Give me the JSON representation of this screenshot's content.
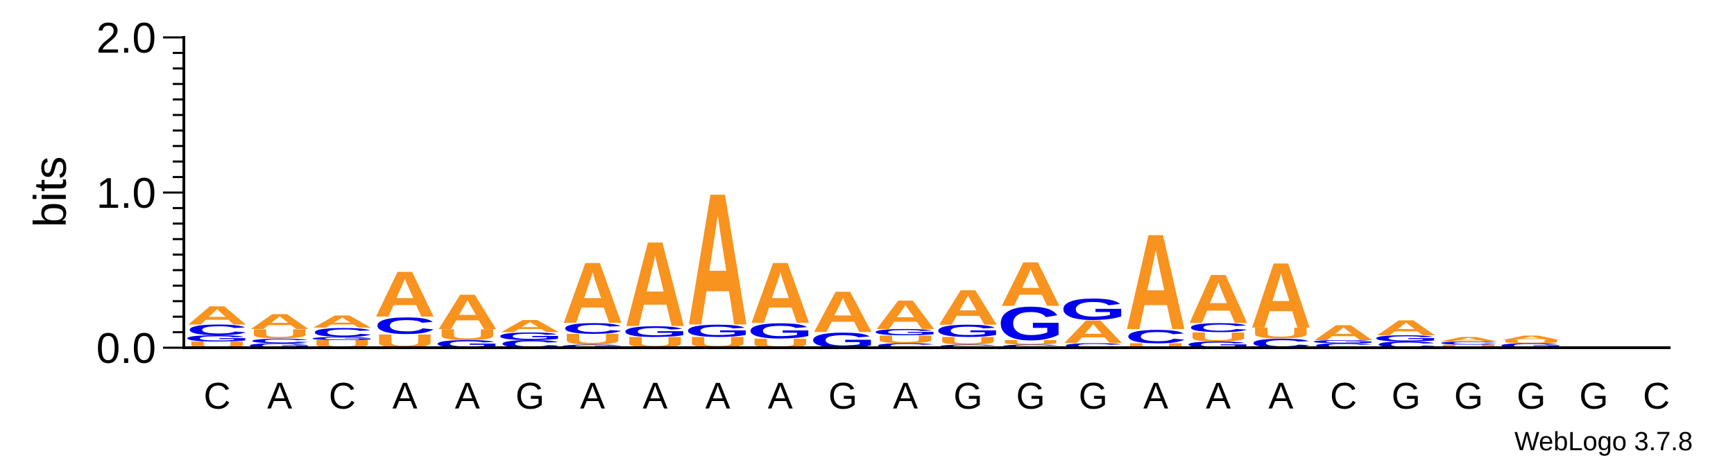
{
  "chart_data": {
    "type": "sequence-logo",
    "ylabel": "bits",
    "ylim": [
      0,
      2.0
    ],
    "yticks": [
      "0.0",
      "1.0",
      "2.0"
    ],
    "credit": "WebLogo 3.7.8",
    "colors": {
      "A": "#f7931e",
      "U": "#f7931e",
      "C": "#0000ee",
      "G": "#0000ee"
    },
    "columns": [
      {
        "label": "C",
        "stack": [
          [
            "U",
            0.04
          ],
          [
            "G",
            0.04
          ],
          [
            "C",
            0.07
          ],
          [
            "A",
            0.12
          ]
        ]
      },
      {
        "label": "A",
        "stack": [
          [
            "G",
            0.03
          ],
          [
            "C",
            0.03
          ],
          [
            "U",
            0.06
          ],
          [
            "A",
            0.1
          ]
        ]
      },
      {
        "label": "C",
        "stack": [
          [
            "U",
            0.05
          ],
          [
            "G",
            0.02
          ],
          [
            "C",
            0.06
          ],
          [
            "A",
            0.08
          ]
        ]
      },
      {
        "label": "A",
        "stack": [
          [
            "U",
            0.09
          ],
          [
            "C",
            0.11
          ],
          [
            "A",
            0.3
          ]
        ]
      },
      {
        "label": "A",
        "stack": [
          [
            "G",
            0.05
          ],
          [
            "U",
            0.07
          ],
          [
            "A",
            0.23
          ]
        ]
      },
      {
        "label": "G",
        "stack": [
          [
            "C",
            0.05
          ],
          [
            "G",
            0.05
          ],
          [
            "A",
            0.08
          ]
        ]
      },
      {
        "label": "A",
        "stack": [
          [
            "G",
            0.02
          ],
          [
            "U",
            0.07
          ],
          [
            "C",
            0.07
          ],
          [
            "A",
            0.4
          ]
        ]
      },
      {
        "label": "A",
        "stack": [
          [
            "U",
            0.07
          ],
          [
            "G",
            0.07
          ],
          [
            "A",
            0.56
          ]
        ]
      },
      {
        "label": "A",
        "stack": [
          [
            "U",
            0.07
          ],
          [
            "G",
            0.08
          ],
          [
            "A",
            0.87
          ]
        ]
      },
      {
        "label": "A",
        "stack": [
          [
            "U",
            0.06
          ],
          [
            "G",
            0.1
          ],
          [
            "A",
            0.4
          ]
        ]
      },
      {
        "label": "G",
        "stack": [
          [
            "G",
            0.1
          ],
          [
            "A",
            0.27
          ]
        ]
      },
      {
        "label": "A",
        "stack": [
          [
            "C",
            0.03
          ],
          [
            "U",
            0.05
          ],
          [
            "G",
            0.04
          ],
          [
            "A",
            0.19
          ]
        ]
      },
      {
        "label": "G",
        "stack": [
          [
            "C",
            0.02
          ],
          [
            "U",
            0.05
          ],
          [
            "G",
            0.08
          ],
          [
            "A",
            0.23
          ]
        ]
      },
      {
        "label": "G",
        "stack": [
          [
            "C",
            0.02
          ],
          [
            "U",
            0.03
          ],
          [
            "G",
            0.22
          ],
          [
            "A",
            0.29
          ]
        ]
      },
      {
        "label": "G",
        "stack": [
          [
            "C",
            0.03
          ],
          [
            "A",
            0.15
          ],
          [
            "G",
            0.14
          ]
        ]
      },
      {
        "label": "A",
        "stack": [
          [
            "U",
            0.03
          ],
          [
            "C",
            0.09
          ],
          [
            "A",
            0.63
          ]
        ]
      },
      {
        "label": "A",
        "stack": [
          [
            "G",
            0.04
          ],
          [
            "U",
            0.06
          ],
          [
            "C",
            0.06
          ],
          [
            "A",
            0.32
          ]
        ]
      },
      {
        "label": "A",
        "stack": [
          [
            "C",
            0.06
          ],
          [
            "U",
            0.07
          ],
          [
            "A",
            0.43
          ]
        ]
      },
      {
        "label": "C",
        "stack": [
          [
            "C",
            0.03
          ],
          [
            "G",
            0.02
          ],
          [
            "A",
            0.1
          ]
        ]
      },
      {
        "label": "G",
        "stack": [
          [
            "C",
            0.04
          ],
          [
            "G",
            0.04
          ],
          [
            "A",
            0.1
          ]
        ]
      },
      {
        "label": "G",
        "stack": [
          [
            "U",
            0.02
          ],
          [
            "C",
            0.02
          ],
          [
            "A",
            0.03
          ]
        ]
      },
      {
        "label": "G",
        "stack": [
          [
            "G",
            0.03
          ],
          [
            "U",
            0.02
          ],
          [
            "A",
            0.03
          ]
        ]
      },
      {
        "label": "G",
        "stack": []
      },
      {
        "label": "C",
        "stack": []
      }
    ]
  }
}
